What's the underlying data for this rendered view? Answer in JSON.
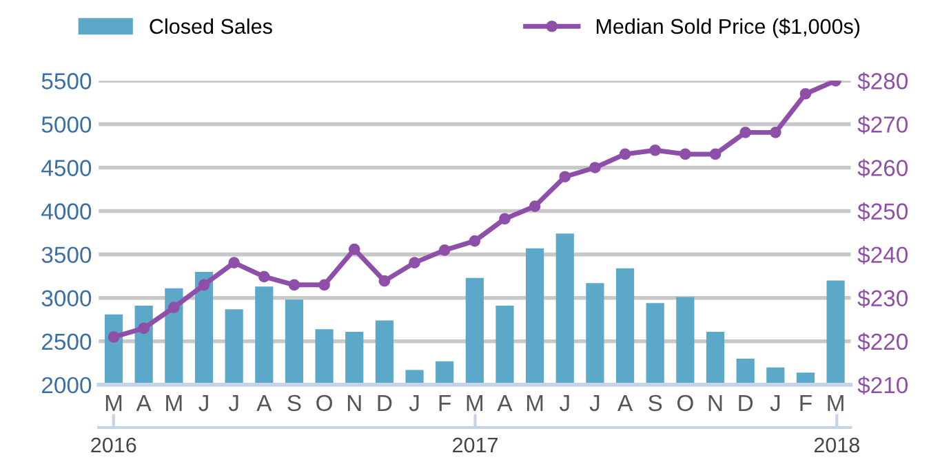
{
  "chart_data": {
    "type": "bar",
    "categories": [
      "M",
      "A",
      "M",
      "J",
      "J",
      "A",
      "S",
      "O",
      "N",
      "D",
      "J",
      "F",
      "M",
      "A",
      "M",
      "J",
      "J",
      "A",
      "S",
      "O",
      "N",
      "D",
      "J",
      "F",
      "M"
    ],
    "series": [
      {
        "name": "Closed Sales",
        "color": "#5ba8c9",
        "values": [
          2810,
          2910,
          3110,
          3300,
          2870,
          3130,
          2980,
          2640,
          2610,
          2740,
          2170,
          2270,
          3230,
          2910,
          3570,
          3740,
          3170,
          3340,
          2940,
          3010,
          2610,
          2300,
          2200,
          2140,
          3200
        ]
      },
      {
        "name": "Median Sold Price ($1,000s)",
        "type": "line",
        "axis": "y2",
        "color": "#8e4fa8",
        "marker": "circle",
        "values": [
          221,
          223,
          227.8,
          233,
          238.1,
          234.9,
          233,
          233,
          241.2,
          233.9,
          238.1,
          241,
          243.1,
          248.2,
          251.1,
          257.9,
          260,
          263.1,
          264,
          263.1,
          263.1,
          268.1,
          268.1,
          277,
          280
        ]
      }
    ],
    "ylim": [
      2000,
      5500
    ],
    "yticks": [
      2000,
      2500,
      3000,
      3500,
      4000,
      4500,
      5000,
      5500
    ],
    "y2lim": [
      210,
      280
    ],
    "y2ticks": [
      {
        "value": 210,
        "label": "$210"
      },
      {
        "value": 220,
        "label": "$220"
      },
      {
        "value": 230,
        "label": "$230"
      },
      {
        "value": 240,
        "label": "$240"
      },
      {
        "value": 250,
        "label": "$250"
      },
      {
        "value": 260,
        "label": "$260"
      },
      {
        "value": 270,
        "label": "$270"
      },
      {
        "value": 280,
        "label": "$280"
      }
    ],
    "x2lim": [
      "2016-02-15",
      "2018-03-15"
    ],
    "x2ticks": [
      {
        "value": "2016-03",
        "label": "2016"
      },
      {
        "value": "2017-03",
        "label": "2017"
      },
      {
        "value": "2018-03",
        "label": "2018"
      }
    ],
    "grid": "y",
    "legend": "top"
  }
}
